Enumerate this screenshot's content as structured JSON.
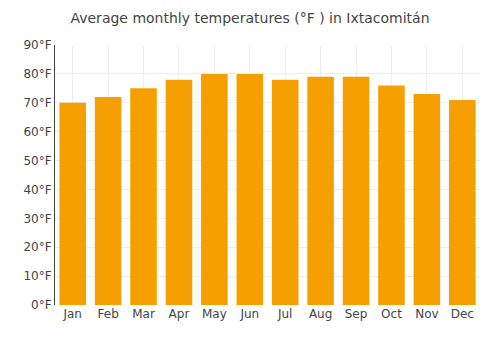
{
  "chart_data": {
    "type": "bar",
    "title": "Average monthly temperatures (°F ) in Ixtacomitán",
    "categories": [
      "Jan",
      "Feb",
      "Mar",
      "Apr",
      "May",
      "Jun",
      "Jul",
      "Aug",
      "Sep",
      "Oct",
      "Nov",
      "Dec"
    ],
    "values": [
      70,
      72,
      75,
      78,
      80,
      80,
      78,
      79,
      79,
      76,
      73,
      71
    ],
    "color": "#F5A000",
    "ylim": [
      0,
      90
    ],
    "yticks": [
      {
        "value": 0,
        "label": "0°F"
      },
      {
        "value": 10,
        "label": "10°F"
      },
      {
        "value": 20,
        "label": "20°F"
      },
      {
        "value": 30,
        "label": "30°F"
      },
      {
        "value": 40,
        "label": "40°F"
      },
      {
        "value": 50,
        "label": "50°F"
      },
      {
        "value": 60,
        "label": "60°F"
      },
      {
        "value": 70,
        "label": "70°F"
      },
      {
        "value": 80,
        "label": "80°F"
      },
      {
        "value": 90,
        "label": "90°F"
      }
    ],
    "grid": true
  }
}
